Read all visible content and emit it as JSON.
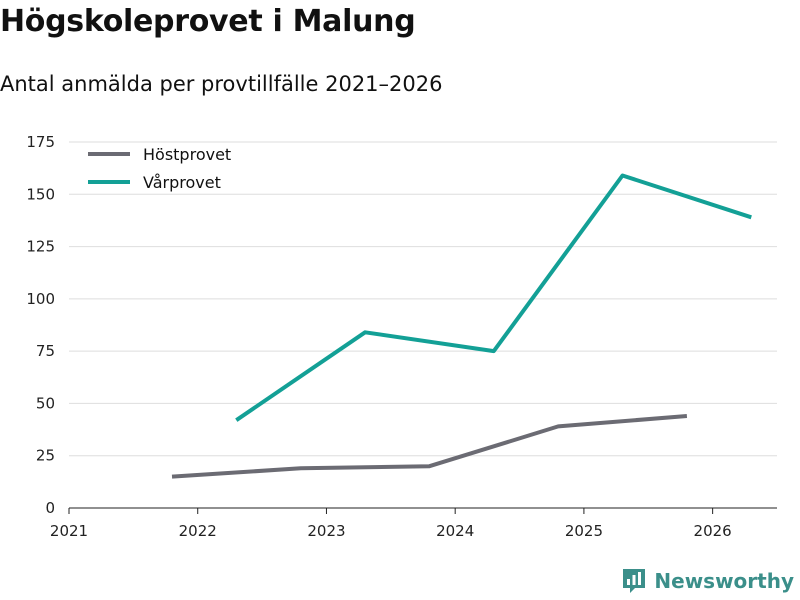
{
  "header": {
    "title": "Högskoleprovet i Malung",
    "subtitle": "Antal anmälda per provtillfälle 2021–2026"
  },
  "brand": {
    "name": "Newsworthy",
    "icon": "newsworthy-logo-icon",
    "color": "#3b8f8a"
  },
  "chart_data": {
    "type": "line",
    "title": "Högskoleprovet i Malung",
    "subtitle": "Antal anmälda per provtillfälle 2021–2026",
    "xlabel": "",
    "ylabel": "",
    "xlim": [
      2021,
      2026.5
    ],
    "ylim": [
      0,
      175
    ],
    "x_ticks": [
      "2021",
      "2022",
      "2023",
      "2024",
      "2025",
      "2026"
    ],
    "y_ticks": [
      "0",
      "25",
      "50",
      "75",
      "100",
      "125",
      "150",
      "175"
    ],
    "grid": "horizontal",
    "legend_position": "top-left",
    "series": [
      {
        "name": "Höstprovet",
        "color": "#6b6b73",
        "x": [
          2021.8,
          2022.8,
          2023.8,
          2024.8,
          2025.8
        ],
        "y": [
          15,
          19,
          20,
          39,
          44
        ]
      },
      {
        "name": "Vårprovet",
        "color": "#13a096",
        "x": [
          2022.3,
          2023.3,
          2024.3,
          2025.3,
          2026.3
        ],
        "y": [
          42,
          84,
          75,
          159,
          139
        ]
      }
    ]
  }
}
